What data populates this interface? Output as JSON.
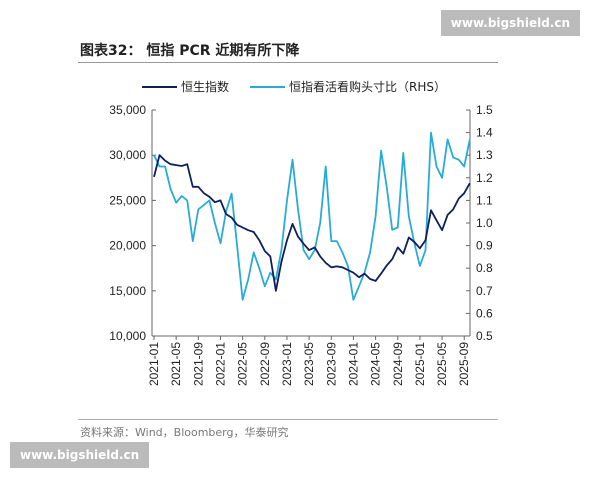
{
  "title": "图表32：  恒指 PCR 近期有所下降",
  "watermark": "www.bigshield.cn",
  "source": "资料来源：Wind，Bloomberg，华泰研究",
  "colors": {
    "hsi": "#0d1f5c",
    "pcr": "#29abd9"
  },
  "chart_data": {
    "type": "line",
    "legend_position": "top",
    "x_tick_labels": [
      "2021-01",
      "2021-05",
      "2021-09",
      "2022-01",
      "2022-05",
      "2022-09",
      "2023-01",
      "2023-05",
      "2023-09",
      "2024-01",
      "2024-05",
      "2024-09",
      "2025-01",
      "2025-05",
      "2025-09"
    ],
    "x": [
      "2021-01",
      "2021-02",
      "2021-03",
      "2021-04",
      "2021-05",
      "2021-06",
      "2021-07",
      "2021-08",
      "2021-09",
      "2021-10",
      "2021-11",
      "2021-12",
      "2022-01",
      "2022-02",
      "2022-03",
      "2022-04",
      "2022-05",
      "2022-06",
      "2022-07",
      "2022-08",
      "2022-09",
      "2022-10",
      "2022-11",
      "2022-12",
      "2023-01",
      "2023-02",
      "2023-03",
      "2023-04",
      "2023-05",
      "2023-06",
      "2023-07",
      "2023-08",
      "2023-09",
      "2023-10",
      "2023-11",
      "2023-12",
      "2024-01",
      "2024-02",
      "2024-03",
      "2024-04",
      "2024-05",
      "2024-06",
      "2024-07",
      "2024-08",
      "2024-09",
      "2024-10",
      "2024-11",
      "2024-12",
      "2025-01",
      "2025-02",
      "2025-03",
      "2025-04",
      "2025-05",
      "2025-06",
      "2025-07",
      "2025-08",
      "2025-09",
      "2025-10"
    ],
    "left_axis": {
      "ylim": [
        10000,
        35000
      ],
      "ticks": [
        "10,000",
        "15,000",
        "20,000",
        "25,000",
        "30,000",
        "35,000"
      ]
    },
    "right_axis": {
      "ylim": [
        0.5,
        1.5
      ],
      "ticks": [
        "0.5",
        "0.6",
        "0.7",
        "0.8",
        "0.9",
        "1.0",
        "1.1",
        "1.2",
        "1.3",
        "1.4",
        "1.5"
      ]
    },
    "series": [
      {
        "name": "恒生指数",
        "axis": "left",
        "values": [
          27600,
          30000,
          29400,
          29000,
          28900,
          28800,
          29000,
          26500,
          26500,
          25800,
          25400,
          24800,
          25000,
          23500,
          23100,
          22300,
          22000,
          21700,
          21500,
          20600,
          19400,
          18800,
          15000,
          18200,
          20600,
          22400,
          21000,
          20200,
          19500,
          19800,
          18800,
          18100,
          17600,
          17700,
          17600,
          17300,
          17000,
          16500,
          16900,
          16300,
          16100,
          16900,
          17800,
          18500,
          19800,
          19100,
          20900,
          20400,
          19700,
          20600,
          23900,
          22800,
          21700,
          23400,
          24000,
          25200,
          25800,
          26900
        ]
      },
      {
        "name": "恒指看活看购头寸比（RHS）",
        "axis": "right",
        "values": [
          1.3,
          1.25,
          1.25,
          1.15,
          1.09,
          1.12,
          1.1,
          0.92,
          1.06,
          1.08,
          1.1,
          1.0,
          0.91,
          1.05,
          1.13,
          0.9,
          0.66,
          0.75,
          0.87,
          0.8,
          0.72,
          0.78,
          0.75,
          0.88,
          1.1,
          1.28,
          1.06,
          0.88,
          0.84,
          0.88,
          1.0,
          1.25,
          0.92,
          0.92,
          0.87,
          0.81,
          0.66,
          0.72,
          0.78,
          0.87,
          1.03,
          1.32,
          1.16,
          0.97,
          0.98,
          1.31,
          1.03,
          0.91,
          0.81,
          0.88,
          1.4,
          1.25,
          1.2,
          1.37,
          1.29,
          1.28,
          1.25,
          1.37
        ]
      }
    ]
  }
}
